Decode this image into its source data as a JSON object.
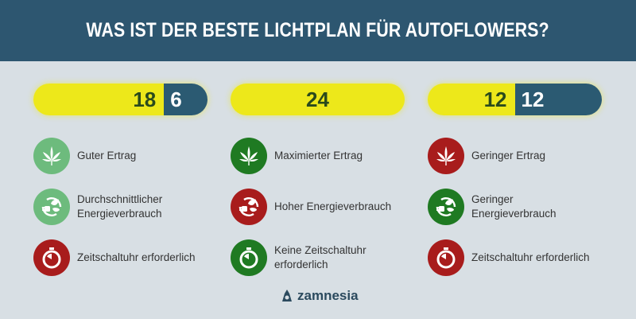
{
  "title": "WAS IST DER BESTE LICHTPLAN FÜR AUTOFLOWERS?",
  "colors": {
    "light_on": "#ede81a",
    "light_off": "#2b5a72",
    "good": "#6dbb7d",
    "best": "#1f7a22",
    "bad": "#a81c1c"
  },
  "columns": [
    {
      "hours_on": "18",
      "hours_off": "6",
      "on_fraction": 0.75,
      "items": [
        {
          "icon": "cannabis-leaf-icon",
          "rating": "good",
          "label": "Guter Ertrag"
        },
        {
          "icon": "energy-plug-leaf-icon",
          "rating": "good",
          "label": "Durchschnittlicher Energieverbrauch"
        },
        {
          "icon": "timer-icon",
          "rating": "bad",
          "label": "Zeitschaltuhr erforderlich"
        }
      ]
    },
    {
      "hours_on": "24",
      "hours_off": "",
      "on_fraction": 1.0,
      "items": [
        {
          "icon": "cannabis-leaf-icon",
          "rating": "best",
          "label": "Maximierter Ertrag"
        },
        {
          "icon": "energy-plug-leaf-icon",
          "rating": "bad",
          "label": "Hoher Energieverbrauch"
        },
        {
          "icon": "timer-icon",
          "rating": "best",
          "label": "Keine Zeitschaltuhr erforderlich"
        }
      ]
    },
    {
      "hours_on": "12",
      "hours_off": "12",
      "on_fraction": 0.5,
      "items": [
        {
          "icon": "cannabis-leaf-icon",
          "rating": "bad",
          "label": "Geringer Ertrag"
        },
        {
          "icon": "energy-plug-leaf-icon",
          "rating": "best",
          "label": "Geringer Energieverbrauch"
        },
        {
          "icon": "timer-icon",
          "rating": "bad",
          "label": "Zeitschaltuhr erforderlich"
        }
      ]
    }
  ],
  "logo": "zamnesia"
}
